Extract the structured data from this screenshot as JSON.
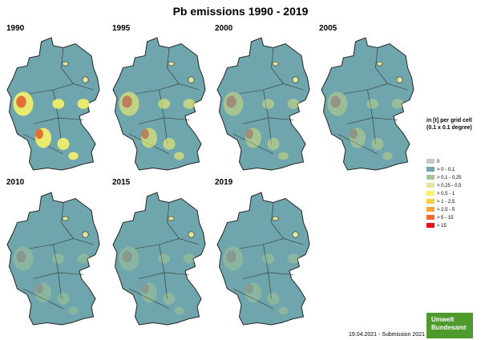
{
  "title": "Pb emissions 1990 - 2019",
  "maps": [
    {
      "year": "1990"
    },
    {
      "year": "1995"
    },
    {
      "year": "2000"
    },
    {
      "year": "2005"
    },
    {
      "year": "2010"
    },
    {
      "year": "2015"
    },
    {
      "year": "2019"
    }
  ],
  "legend": {
    "title": "in [t] per grid cell (0.1 x 0.1 degree)",
    "items": [
      {
        "label": "0",
        "color": "#c8c8c8"
      },
      {
        "label": "> 0 - 0,1",
        "color": "#6fa6ad"
      },
      {
        "label": "> 0,1 - 0,25",
        "color": "#a9c79a"
      },
      {
        "label": "> 0,25 - 0,5",
        "color": "#e3e59a"
      },
      {
        "label": "> 0,5 - 1",
        "color": "#f7f26a"
      },
      {
        "label": "> 1 - 2,5",
        "color": "#f9d13c"
      },
      {
        "label": "> 2,5 - 5",
        "color": "#f4a43a"
      },
      {
        "label": "> 5 - 15",
        "color": "#ee6a2b"
      },
      {
        "label": "> 15",
        "color": "#e3101a"
      }
    ]
  },
  "footer": {
    "date": "19.04.2021 - Submission 2021"
  },
  "logo": {
    "line1": "Umwelt",
    "line2": "Bundesamt"
  }
}
